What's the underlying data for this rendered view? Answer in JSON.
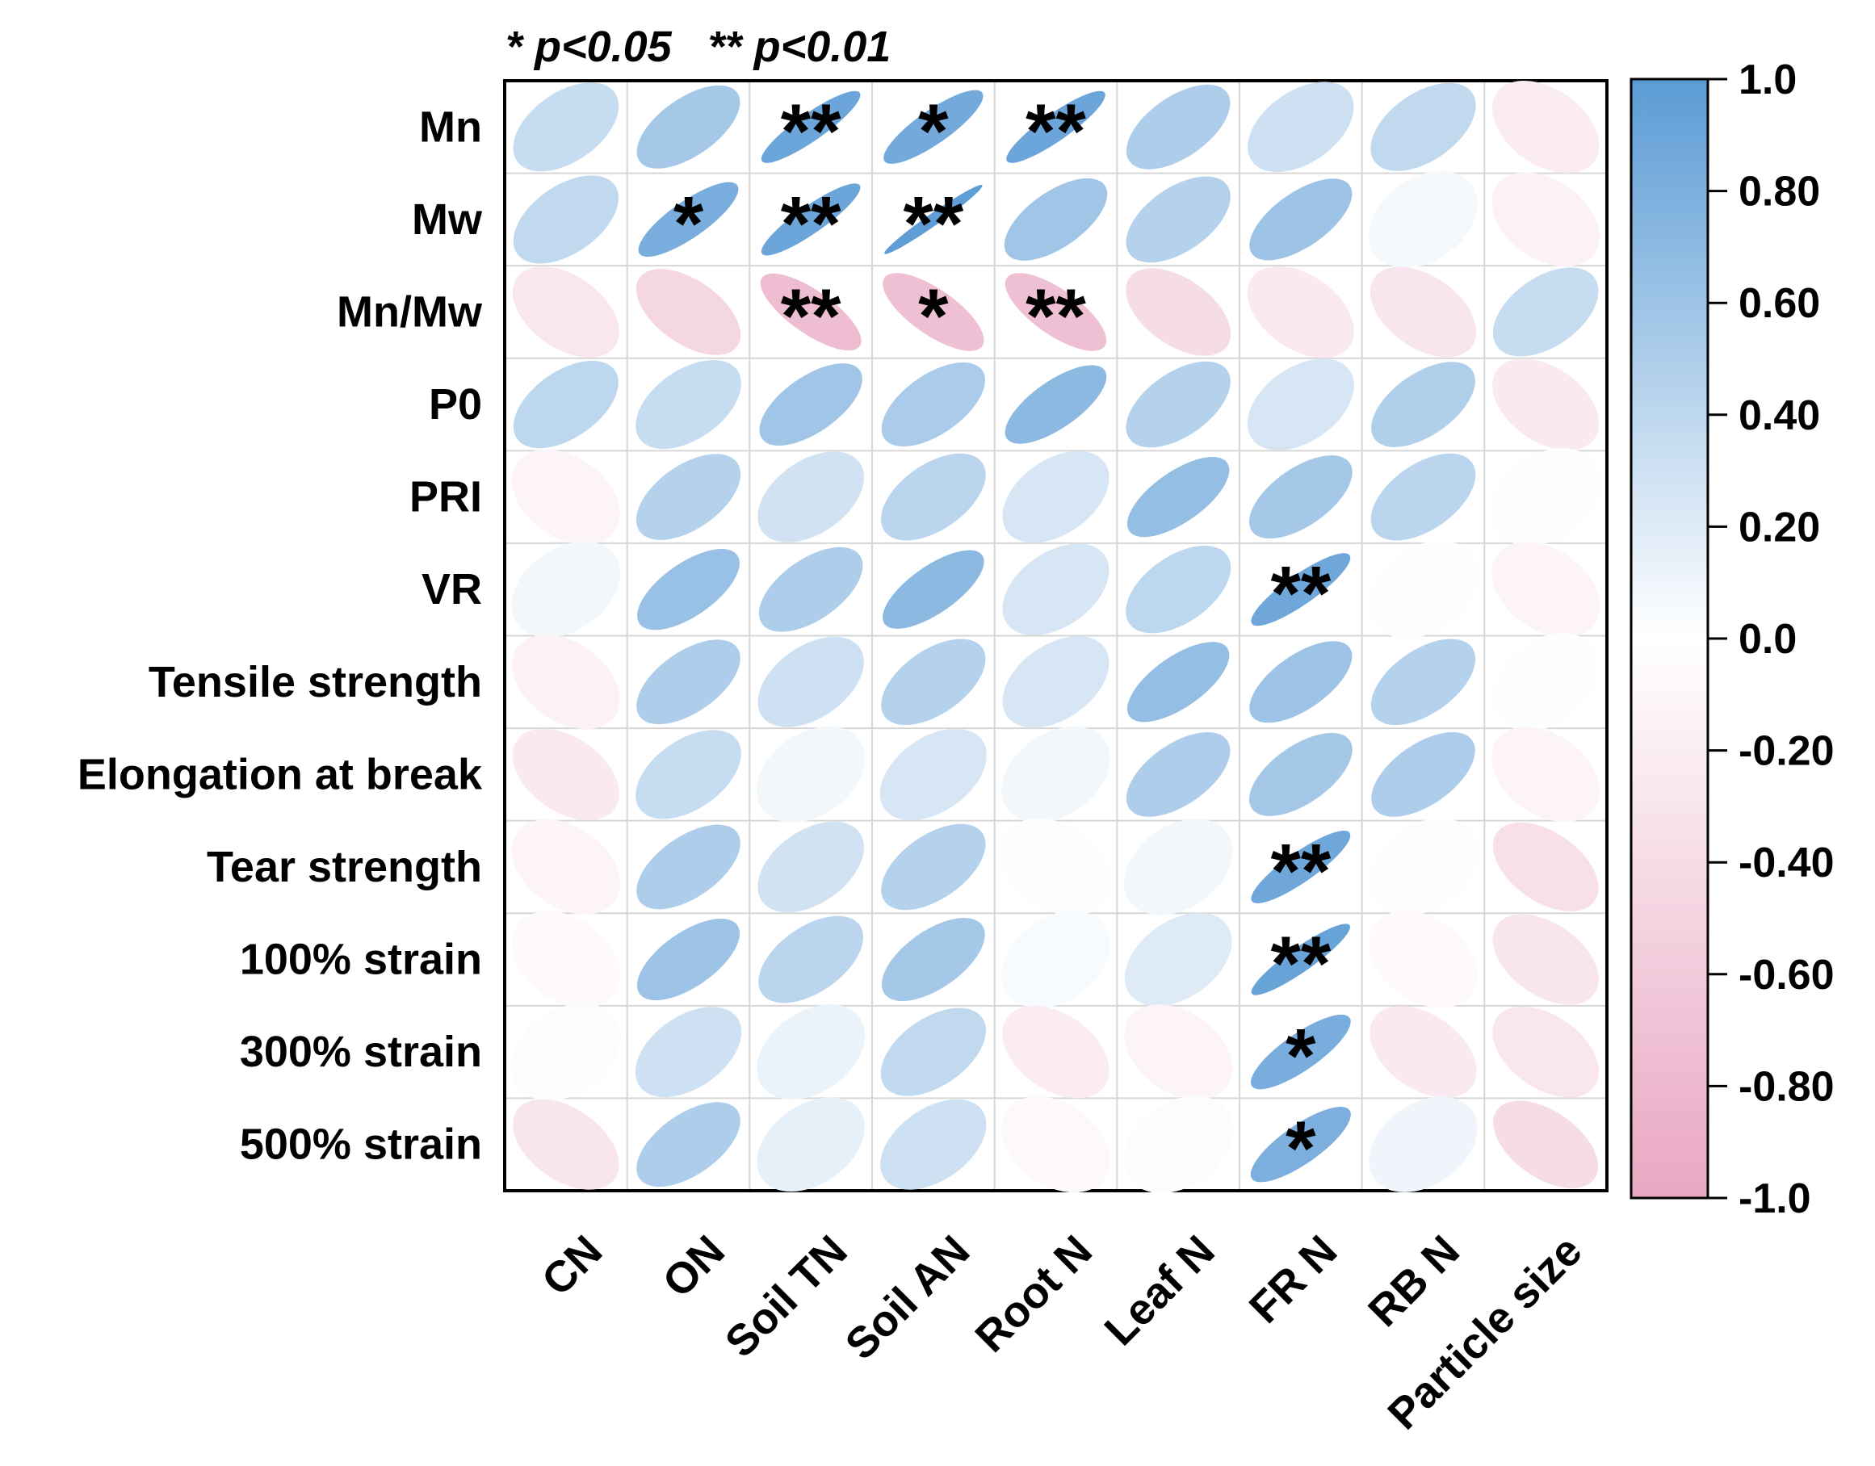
{
  "chart_data": {
    "type": "heatmap",
    "subtype": "correlation-ellipse",
    "significance_note": "* p<0.05   ** p<0.01",
    "rows": [
      "Mn",
      "Mw",
      "Mn/Mw",
      "P0",
      "PRI",
      "VR",
      "Tensile strength",
      "Elongation at break",
      "Tear strength",
      "100% strain",
      "300% strain",
      "500% strain"
    ],
    "columns": [
      "CN",
      "ON",
      "Soil TN",
      "Soil AN",
      "Root N",
      "Leaf N",
      "FR N",
      "RB N",
      "Particle size"
    ],
    "values": [
      [
        0.35,
        0.55,
        0.9,
        0.85,
        0.9,
        0.5,
        0.3,
        0.38,
        -0.22
      ],
      [
        0.38,
        0.82,
        0.9,
        0.98,
        0.58,
        0.45,
        0.6,
        0.06,
        -0.15
      ],
      [
        -0.28,
        -0.45,
        -0.75,
        -0.72,
        -0.72,
        -0.4,
        -0.25,
        -0.3,
        0.35
      ],
      [
        0.4,
        0.35,
        0.58,
        0.52,
        0.7,
        0.45,
        0.25,
        0.48,
        -0.25
      ],
      [
        -0.12,
        0.45,
        0.28,
        0.42,
        0.25,
        0.65,
        0.55,
        0.42,
        0.02
      ],
      [
        0.08,
        0.62,
        0.5,
        0.7,
        0.25,
        0.4,
        0.88,
        0.02,
        -0.12
      ],
      [
        -0.15,
        0.5,
        0.3,
        0.45,
        0.25,
        0.65,
        0.6,
        0.45,
        0.01
      ],
      [
        -0.25,
        0.35,
        0.08,
        0.25,
        0.08,
        0.5,
        0.55,
        0.5,
        -0.12
      ],
      [
        -0.12,
        0.5,
        0.28,
        0.45,
        -0.03,
        0.08,
        0.88,
        0.02,
        -0.35
      ],
      [
        -0.06,
        0.6,
        0.42,
        0.55,
        0.04,
        0.2,
        0.92,
        -0.06,
        -0.3
      ],
      [
        0.03,
        0.3,
        0.12,
        0.38,
        -0.22,
        -0.12,
        0.82,
        -0.25,
        -0.28
      ],
      [
        -0.3,
        0.5,
        0.15,
        0.3,
        -0.08,
        0.03,
        0.8,
        0.1,
        -0.4
      ]
    ],
    "significance": [
      [
        "",
        "",
        "**",
        "*",
        "**",
        "",
        "",
        "",
        ""
      ],
      [
        "",
        "*",
        "**",
        "**",
        "",
        "",
        "",
        "",
        ""
      ],
      [
        "",
        "",
        "**",
        "*",
        "**",
        "",
        "",
        "",
        ""
      ],
      [
        "",
        "",
        "",
        "",
        "",
        "",
        "",
        "",
        ""
      ],
      [
        "",
        "",
        "",
        "",
        "",
        "",
        "",
        "",
        ""
      ],
      [
        "",
        "",
        "",
        "",
        "",
        "",
        "**",
        "",
        ""
      ],
      [
        "",
        "",
        "",
        "",
        "",
        "",
        "",
        "",
        ""
      ],
      [
        "",
        "",
        "",
        "",
        "",
        "",
        "",
        "",
        ""
      ],
      [
        "",
        "",
        "",
        "",
        "",
        "",
        "**",
        "",
        ""
      ],
      [
        "",
        "",
        "",
        "",
        "",
        "",
        "**",
        "",
        ""
      ],
      [
        "",
        "",
        "",
        "",
        "",
        "",
        "*",
        "",
        ""
      ],
      [
        "",
        "",
        "",
        "",
        "",
        "",
        "*",
        "",
        ""
      ]
    ],
    "color_scale": {
      "range": [
        -1.0,
        1.0
      ],
      "ticks": [
        1.0,
        0.8,
        0.6,
        0.4,
        0.2,
        0.0,
        -0.2,
        -0.4,
        -0.6,
        -0.8,
        -1.0
      ],
      "tick_labels": [
        "1.0",
        "0.80",
        "0.60",
        "0.40",
        "0.20",
        "0.0",
        "-0.20",
        "-0.40",
        "-0.60",
        "-0.80",
        "-1.0"
      ],
      "positive_color": "#5b9bd5",
      "neutral_color": "#ffffff",
      "negative_color": "#e9a7c2"
    },
    "legend_position": "right"
  }
}
